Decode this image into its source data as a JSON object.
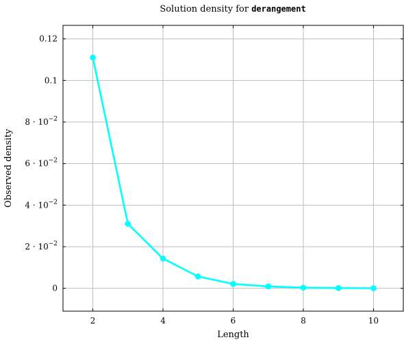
{
  "chart_data": {
    "type": "line",
    "title_prefix": "Solution density for ",
    "title_code": "derangement",
    "xlabel": "Length",
    "ylabel": "Observed density",
    "xlim": [
      1.15,
      10.85
    ],
    "ylim": [
      -0.011,
      0.1265
    ],
    "grid": true,
    "x_ticks": [
      {
        "value": 2,
        "label": "2"
      },
      {
        "value": 4,
        "label": "4"
      },
      {
        "value": 6,
        "label": "6"
      },
      {
        "value": 8,
        "label": "8"
      },
      {
        "value": 10,
        "label": "10"
      }
    ],
    "y_ticks": [
      {
        "value": 0,
        "mant": "0",
        "exp": ""
      },
      {
        "value": 0.02,
        "mant": "2 · 10",
        "exp": "−2"
      },
      {
        "value": 0.04,
        "mant": "4 · 10",
        "exp": "−2"
      },
      {
        "value": 0.06,
        "mant": "6 · 10",
        "exp": "−2"
      },
      {
        "value": 0.08,
        "mant": "8 · 10",
        "exp": "−2"
      },
      {
        "value": 0.1,
        "mant": "0.1",
        "exp": ""
      },
      {
        "value": 0.12,
        "mant": "0.12",
        "exp": ""
      }
    ],
    "series": [
      {
        "color": "#00ffff",
        "x": [
          2,
          3,
          4,
          5,
          6,
          7,
          8,
          9,
          10
        ],
        "y": [
          0.111,
          0.031,
          0.0143,
          0.0057,
          0.0021,
          0.0009,
          0.0003,
          0.0001,
          5e-05
        ]
      }
    ]
  }
}
